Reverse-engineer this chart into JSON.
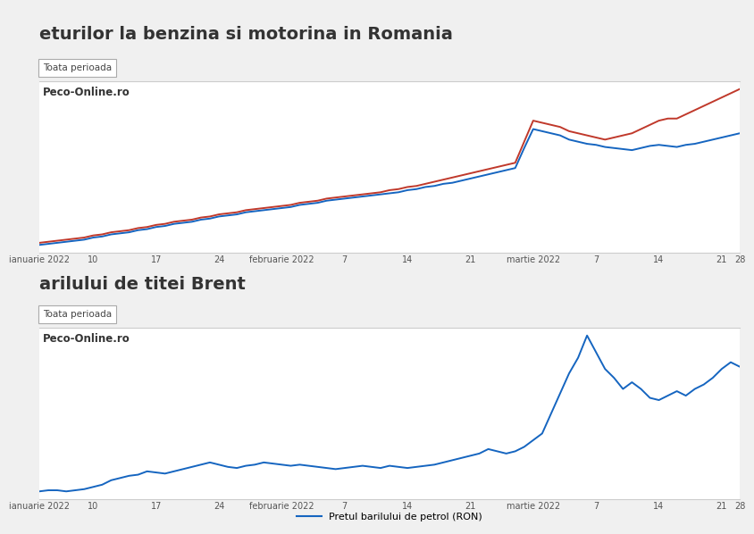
{
  "title1": "eturilor la benzina si motorina in Romania",
  "title2": "arilului de titei Brent",
  "subtitle_label": "Toata perioada",
  "watermark": "Peco-Online.ro",
  "bg_color": "#f0f0f0",
  "plot_bg_color": "#ffffff",
  "header_bg": "#e8e8e8",
  "x_tick_labels": [
    "ianuarie 2022",
    "10",
    "17",
    "24",
    "februarie 2022",
    "7",
    "14",
    "21",
    "martie 2022",
    "7",
    "14",
    "21",
    "28"
  ],
  "benzina": [
    5.3,
    5.31,
    5.32,
    5.33,
    5.34,
    5.35,
    5.37,
    5.38,
    5.4,
    5.41,
    5.42,
    5.44,
    5.45,
    5.47,
    5.48,
    5.5,
    5.51,
    5.52,
    5.54,
    5.55,
    5.57,
    5.58,
    5.59,
    5.61,
    5.62,
    5.63,
    5.64,
    5.65,
    5.66,
    5.68,
    5.69,
    5.7,
    5.72,
    5.73,
    5.74,
    5.75,
    5.76,
    5.77,
    5.78,
    5.79,
    5.8,
    5.82,
    5.83,
    5.85,
    5.86,
    5.88,
    5.89,
    5.91,
    5.93,
    5.95,
    5.97,
    5.99,
    6.01,
    6.03,
    6.22,
    6.4,
    6.38,
    6.36,
    6.34,
    6.3,
    6.28,
    6.26,
    6.25,
    6.23,
    6.22,
    6.21,
    6.2,
    6.22,
    6.24,
    6.25,
    6.24,
    6.23,
    6.25,
    6.26,
    6.28,
    6.3,
    6.32,
    6.34,
    6.36
  ],
  "motorina": [
    5.32,
    5.33,
    5.34,
    5.35,
    5.36,
    5.37,
    5.39,
    5.4,
    5.42,
    5.43,
    5.44,
    5.46,
    5.47,
    5.49,
    5.5,
    5.52,
    5.53,
    5.54,
    5.56,
    5.57,
    5.59,
    5.6,
    5.61,
    5.63,
    5.64,
    5.65,
    5.66,
    5.67,
    5.68,
    5.7,
    5.71,
    5.72,
    5.74,
    5.75,
    5.76,
    5.77,
    5.78,
    5.79,
    5.8,
    5.82,
    5.83,
    5.85,
    5.86,
    5.88,
    5.9,
    5.92,
    5.94,
    5.96,
    5.98,
    6.0,
    6.02,
    6.04,
    6.06,
    6.08,
    6.28,
    6.48,
    6.46,
    6.44,
    6.42,
    6.38,
    6.36,
    6.34,
    6.32,
    6.3,
    6.32,
    6.34,
    6.36,
    6.4,
    6.44,
    6.48,
    6.5,
    6.5,
    6.54,
    6.58,
    6.62,
    6.66,
    6.7,
    6.74,
    6.78
  ],
  "oil": [
    370,
    371,
    371,
    370,
    371,
    372,
    374,
    376,
    380,
    382,
    384,
    385,
    388,
    387,
    386,
    388,
    390,
    392,
    394,
    396,
    394,
    392,
    391,
    393,
    394,
    396,
    395,
    394,
    393,
    394,
    393,
    392,
    391,
    390,
    391,
    392,
    393,
    392,
    391,
    393,
    392,
    391,
    392,
    393,
    394,
    396,
    398,
    400,
    402,
    404,
    408,
    406,
    404,
    406,
    410,
    416,
    422,
    440,
    458,
    476,
    490,
    510,
    495,
    480,
    472,
    462,
    468,
    462,
    454,
    452,
    456,
    460,
    456,
    462,
    466,
    472,
    480,
    486,
    482
  ],
  "benzina_color": "#1565c0",
  "motorina_color": "#c0392b",
  "oil_color": "#1565c0",
  "grid_color": "#cccccc",
  "text_color": "#333333",
  "tick_color": "#555555"
}
